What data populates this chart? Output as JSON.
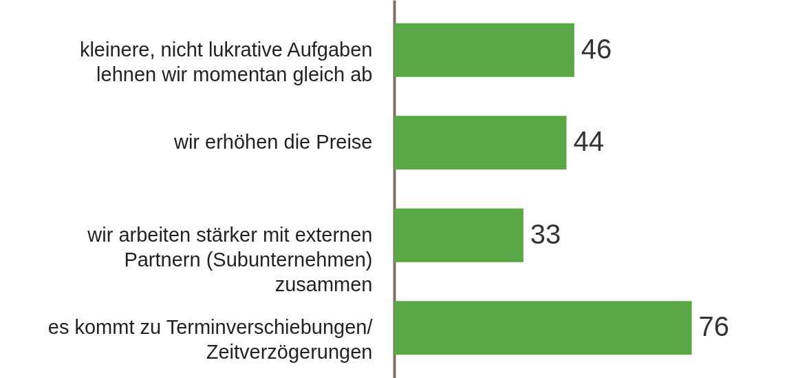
{
  "chart_data": {
    "type": "bar",
    "orientation": "horizontal",
    "categories": [
      "kleinere, nicht lukrative Aufgaben\nlehnen wir momentan gleich ab",
      "wir erhöhen die Preise",
      "wir arbeiten stärker mit externen\nPartnern (Subunternehmen)\nzusammen",
      "es kommt zu Terminverschiebungen/\nZeitverzögerungen"
    ],
    "values": [
      46,
      44,
      33,
      76
    ],
    "color": "#5aa845",
    "data_labels": true
  }
}
